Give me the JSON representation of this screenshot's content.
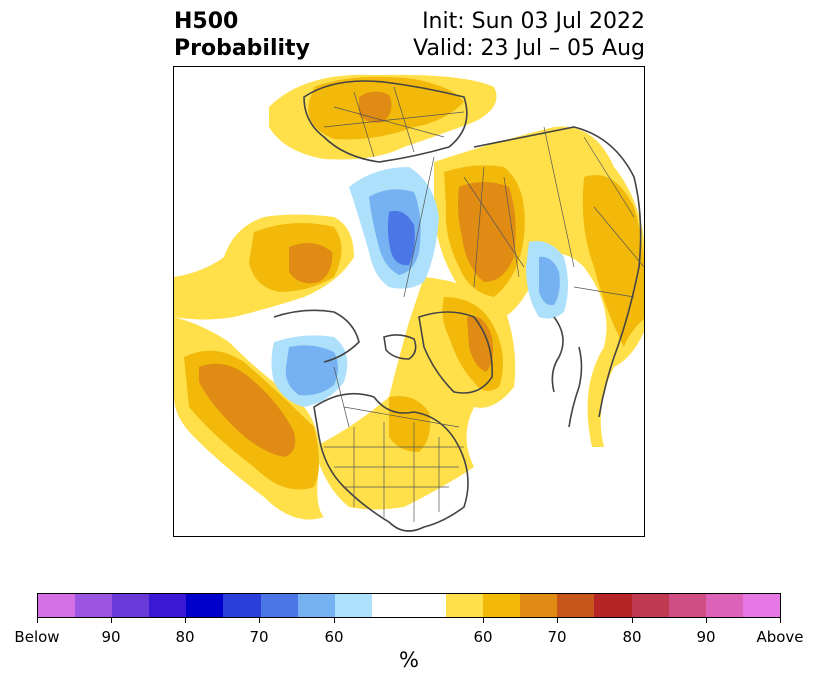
{
  "header": {
    "title_line1": "H500",
    "title_line2": "Probability",
    "init_text": "Init: Sun 03 Jul 2022",
    "valid_text": "Valid: 23 Jul – 05 Aug"
  },
  "colorbar": {
    "colors": {
      "below_extreme": "#d46fe6",
      "below_90": "#9c55e0",
      "below_85": "#6a3ad8",
      "below_80": "#3a18d4",
      "below_75": "#0000cd",
      "below_70": "#2a3fd9",
      "below_65": "#4b77e6",
      "below_60": "#76b1f2",
      "below_55": "#ade0fb",
      "neutral": "#ffffff",
      "above_55": "#ffe04a",
      "above_60": "#f2b90a",
      "above_65": "#e08b14",
      "above_70": "#c7561a",
      "above_75": "#b52525",
      "above_80": "#c03a52",
      "above_85": "#cf4f84",
      "above_90": "#dc63b8",
      "above_extreme": "#e878e6"
    },
    "tick_labels": {
      "below": "Below",
      "b90": "90",
      "b80": "80",
      "b70": "70",
      "b60": "60",
      "a60": "60",
      "a70": "70",
      "a80": "80",
      "a90": "90",
      "above": "Above"
    },
    "unit": "%"
  },
  "map": {
    "projection": "polar stereographic, North Pole",
    "fill_colors": {
      "above_light": "#ffe04a",
      "above_mid": "#f2b90a",
      "above_dark": "#e08b14",
      "below_light": "#ade0fb",
      "below_mid": "#76b1f2",
      "below_dark": "#4b77e6"
    }
  }
}
